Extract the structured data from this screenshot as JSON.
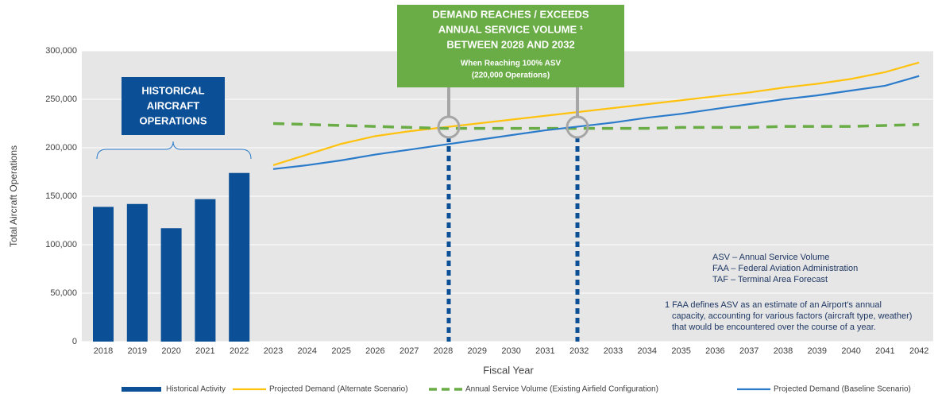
{
  "chart_data": {
    "type": "combo",
    "x_label": "Fiscal Year",
    "y_label": "Total Aircraft Operations",
    "categories": [
      "2018",
      "2019",
      "2020",
      "2021",
      "2022",
      "2023",
      "2024",
      "2025",
      "2026",
      "2027",
      "2028",
      "2029",
      "2030",
      "2031",
      "2032",
      "2033",
      "2034",
      "2035",
      "2036",
      "2037",
      "2038",
      "2039",
      "2040",
      "2041",
      "2042"
    ],
    "ylim": [
      0,
      300000
    ],
    "yticks": [
      0,
      {
        "value": 50000,
        "label": "50,000"
      },
      {
        "value": 100000,
        "label": "100,000"
      },
      {
        "value": 150000,
        "label": "150,000"
      },
      {
        "value": 200000,
        "label": "200,000"
      },
      {
        "value": 250000,
        "label": "250,000"
      },
      {
        "value": 300000,
        "label": "300,000"
      }
    ],
    "grid": true,
    "series": [
      {
        "name": "Historical Activity",
        "type": "bar",
        "color": "#0b4f97",
        "values": [
          139000,
          142000,
          117000,
          147000,
          174000,
          null,
          null,
          null,
          null,
          null,
          null,
          null,
          null,
          null,
          null,
          null,
          null,
          null,
          null,
          null,
          null,
          null,
          null,
          null,
          null
        ]
      },
      {
        "name": "Projected Demand (Alternate Scenario)",
        "type": "line",
        "color": "#ffc20e",
        "values": [
          null,
          null,
          null,
          null,
          null,
          182000,
          193000,
          204000,
          212000,
          217000,
          221000,
          225000,
          229000,
          233000,
          237000,
          241000,
          245000,
          249000,
          253000,
          257000,
          262000,
          266000,
          271000,
          278000,
          288000
        ]
      },
      {
        "name": "Annual Service Volume (Existing Airfield Configuration)",
        "type": "line",
        "dash": true,
        "color": "#6aad46",
        "values": [
          null,
          null,
          null,
          null,
          null,
          225000,
          224000,
          223000,
          222000,
          221000,
          220000,
          220000,
          220000,
          220000,
          220000,
          220000,
          220000,
          221000,
          221000,
          221000,
          222000,
          222000,
          222000,
          223000,
          224000
        ]
      },
      {
        "name": "Projected Demand (Baseline Scenario)",
        "type": "line",
        "color": "#2b7bcb",
        "values": [
          null,
          null,
          null,
          null,
          null,
          178000,
          182000,
          187000,
          193000,
          198000,
          203000,
          208000,
          213000,
          218000,
          222000,
          226000,
          231000,
          235000,
          240000,
          245000,
          250000,
          254000,
          259000,
          264000,
          274000
        ]
      }
    ],
    "callout": {
      "title": [
        "DEMAND REACHES / EXCEEDS",
        "ANNUAL SERVICE VOLUME ¹",
        "BETWEEN 2028 AND 2032"
      ],
      "subtitle": [
        "When Reaching 100% ASV",
        "(220,000 Operations)"
      ]
    },
    "historical_label": [
      "HISTORICAL",
      "AIRCRAFT",
      "OPERATIONS"
    ],
    "glossary": [
      "ASV – Annual Service Volume",
      "FAA – Federal Aviation Administration",
      "TAF – Terminal Area Forecast"
    ],
    "footnote": [
      "1  FAA defines ASV as an estimate of an Airport's annual",
      "capacity, accounting for various factors (aircraft type, weather)",
      "that would be encountered over the course of a year."
    ]
  }
}
